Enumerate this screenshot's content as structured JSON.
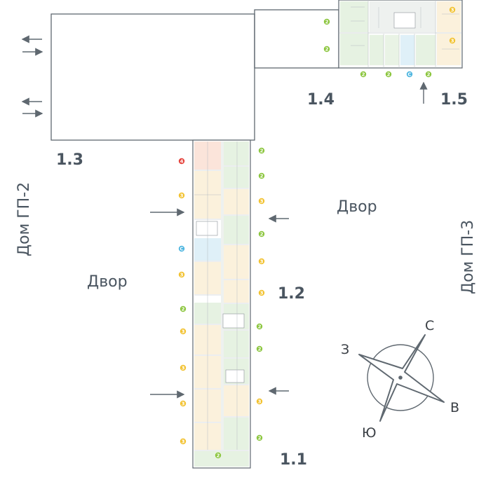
{
  "sections": [
    "1.1",
    "1.2",
    "1.3",
    "1.4",
    "1.5"
  ],
  "yards": [
    "Двор",
    "Двор"
  ],
  "houses": [
    "Дом ГП-2",
    "Дом ГП-3"
  ],
  "compass": [
    "С",
    "В",
    "Ю",
    "З"
  ],
  "colors": {
    "two_room": "#8cc63f",
    "three_room": "#f2c230",
    "studio": "#4fb6e0",
    "four_room": "#e5433c",
    "outline": "#5f6870",
    "text": "#4a5560"
  },
  "badges": {
    "left_column": [
      "4",
      "3",
      "С",
      "3",
      "2",
      "3",
      "3",
      "3",
      "3"
    ],
    "right_column": [
      "2",
      "2",
      "3",
      "2",
      "3",
      "3",
      "2",
      "2",
      "3",
      "2"
    ],
    "bottom": [
      "2"
    ],
    "top_right_left": [
      "2",
      "2"
    ],
    "top_right_right": [
      "3",
      "3"
    ],
    "top_right_bottom": [
      "2",
      "2",
      "С",
      "2"
    ]
  }
}
